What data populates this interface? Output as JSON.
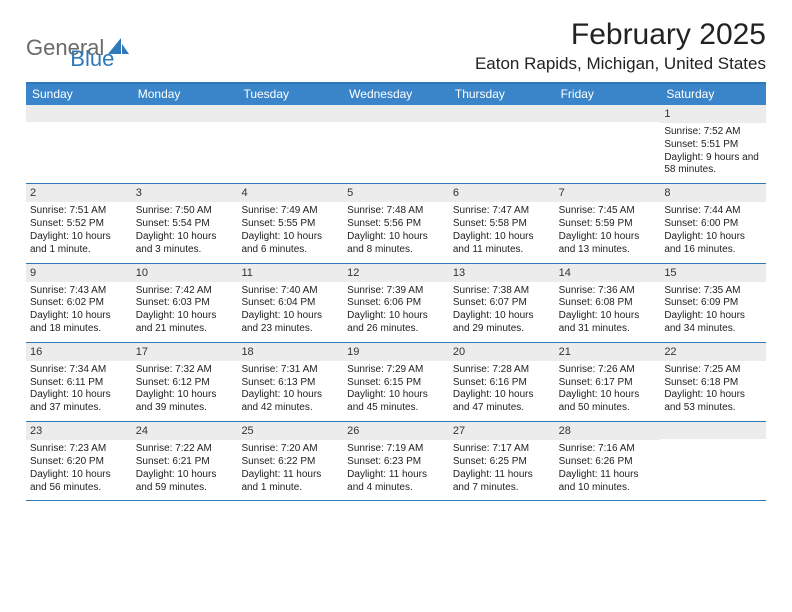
{
  "logo": {
    "word1": "General",
    "word2": "Blue"
  },
  "title": "February 2025",
  "location": "Eaton Rapids, Michigan, United States",
  "colors": {
    "header_bg": "#3a85c9",
    "header_text": "#ffffff",
    "border": "#2f78b9",
    "daynum_bg": "#ececec",
    "logo_gray": "#6a6a6a",
    "logo_blue": "#2f78b9",
    "body_text": "#222222",
    "page_bg": "#ffffff"
  },
  "day_names": [
    "Sunday",
    "Monday",
    "Tuesday",
    "Wednesday",
    "Thursday",
    "Friday",
    "Saturday"
  ],
  "weeks": [
    [
      {
        "n": "",
        "lines": []
      },
      {
        "n": "",
        "lines": []
      },
      {
        "n": "",
        "lines": []
      },
      {
        "n": "",
        "lines": []
      },
      {
        "n": "",
        "lines": []
      },
      {
        "n": "",
        "lines": []
      },
      {
        "n": "1",
        "lines": [
          "Sunrise: 7:52 AM",
          "Sunset: 5:51 PM",
          "Daylight: 9 hours and 58 minutes."
        ]
      }
    ],
    [
      {
        "n": "2",
        "lines": [
          "Sunrise: 7:51 AM",
          "Sunset: 5:52 PM",
          "Daylight: 10 hours and 1 minute."
        ]
      },
      {
        "n": "3",
        "lines": [
          "Sunrise: 7:50 AM",
          "Sunset: 5:54 PM",
          "Daylight: 10 hours and 3 minutes."
        ]
      },
      {
        "n": "4",
        "lines": [
          "Sunrise: 7:49 AM",
          "Sunset: 5:55 PM",
          "Daylight: 10 hours and 6 minutes."
        ]
      },
      {
        "n": "5",
        "lines": [
          "Sunrise: 7:48 AM",
          "Sunset: 5:56 PM",
          "Daylight: 10 hours and 8 minutes."
        ]
      },
      {
        "n": "6",
        "lines": [
          "Sunrise: 7:47 AM",
          "Sunset: 5:58 PM",
          "Daylight: 10 hours and 11 minutes."
        ]
      },
      {
        "n": "7",
        "lines": [
          "Sunrise: 7:45 AM",
          "Sunset: 5:59 PM",
          "Daylight: 10 hours and 13 minutes."
        ]
      },
      {
        "n": "8",
        "lines": [
          "Sunrise: 7:44 AM",
          "Sunset: 6:00 PM",
          "Daylight: 10 hours and 16 minutes."
        ]
      }
    ],
    [
      {
        "n": "9",
        "lines": [
          "Sunrise: 7:43 AM",
          "Sunset: 6:02 PM",
          "Daylight: 10 hours and 18 minutes."
        ]
      },
      {
        "n": "10",
        "lines": [
          "Sunrise: 7:42 AM",
          "Sunset: 6:03 PM",
          "Daylight: 10 hours and 21 minutes."
        ]
      },
      {
        "n": "11",
        "lines": [
          "Sunrise: 7:40 AM",
          "Sunset: 6:04 PM",
          "Daylight: 10 hours and 23 minutes."
        ]
      },
      {
        "n": "12",
        "lines": [
          "Sunrise: 7:39 AM",
          "Sunset: 6:06 PM",
          "Daylight: 10 hours and 26 minutes."
        ]
      },
      {
        "n": "13",
        "lines": [
          "Sunrise: 7:38 AM",
          "Sunset: 6:07 PM",
          "Daylight: 10 hours and 29 minutes."
        ]
      },
      {
        "n": "14",
        "lines": [
          "Sunrise: 7:36 AM",
          "Sunset: 6:08 PM",
          "Daylight: 10 hours and 31 minutes."
        ]
      },
      {
        "n": "15",
        "lines": [
          "Sunrise: 7:35 AM",
          "Sunset: 6:09 PM",
          "Daylight: 10 hours and 34 minutes."
        ]
      }
    ],
    [
      {
        "n": "16",
        "lines": [
          "Sunrise: 7:34 AM",
          "Sunset: 6:11 PM",
          "Daylight: 10 hours and 37 minutes."
        ]
      },
      {
        "n": "17",
        "lines": [
          "Sunrise: 7:32 AM",
          "Sunset: 6:12 PM",
          "Daylight: 10 hours and 39 minutes."
        ]
      },
      {
        "n": "18",
        "lines": [
          "Sunrise: 7:31 AM",
          "Sunset: 6:13 PM",
          "Daylight: 10 hours and 42 minutes."
        ]
      },
      {
        "n": "19",
        "lines": [
          "Sunrise: 7:29 AM",
          "Sunset: 6:15 PM",
          "Daylight: 10 hours and 45 minutes."
        ]
      },
      {
        "n": "20",
        "lines": [
          "Sunrise: 7:28 AM",
          "Sunset: 6:16 PM",
          "Daylight: 10 hours and 47 minutes."
        ]
      },
      {
        "n": "21",
        "lines": [
          "Sunrise: 7:26 AM",
          "Sunset: 6:17 PM",
          "Daylight: 10 hours and 50 minutes."
        ]
      },
      {
        "n": "22",
        "lines": [
          "Sunrise: 7:25 AM",
          "Sunset: 6:18 PM",
          "Daylight: 10 hours and 53 minutes."
        ]
      }
    ],
    [
      {
        "n": "23",
        "lines": [
          "Sunrise: 7:23 AM",
          "Sunset: 6:20 PM",
          "Daylight: 10 hours and 56 minutes."
        ]
      },
      {
        "n": "24",
        "lines": [
          "Sunrise: 7:22 AM",
          "Sunset: 6:21 PM",
          "Daylight: 10 hours and 59 minutes."
        ]
      },
      {
        "n": "25",
        "lines": [
          "Sunrise: 7:20 AM",
          "Sunset: 6:22 PM",
          "Daylight: 11 hours and 1 minute."
        ]
      },
      {
        "n": "26",
        "lines": [
          "Sunrise: 7:19 AM",
          "Sunset: 6:23 PM",
          "Daylight: 11 hours and 4 minutes."
        ]
      },
      {
        "n": "27",
        "lines": [
          "Sunrise: 7:17 AM",
          "Sunset: 6:25 PM",
          "Daylight: 11 hours and 7 minutes."
        ]
      },
      {
        "n": "28",
        "lines": [
          "Sunrise: 7:16 AM",
          "Sunset: 6:26 PM",
          "Daylight: 11 hours and 10 minutes."
        ]
      },
      {
        "n": "",
        "lines": []
      }
    ]
  ]
}
